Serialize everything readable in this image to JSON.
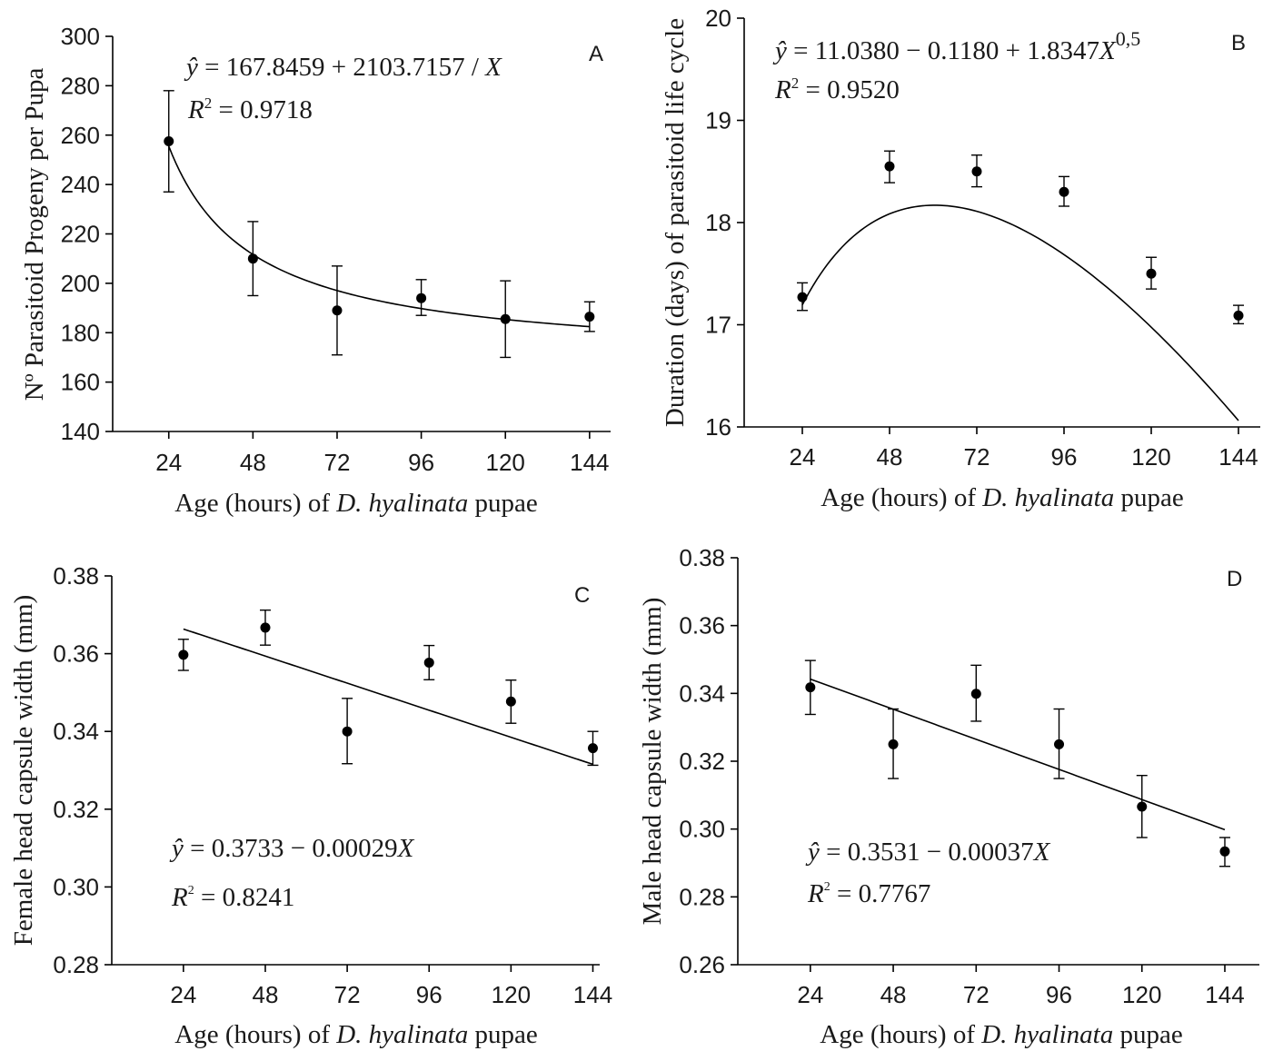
{
  "figure": {
    "xlabel_prefix": "Age (hours) of ",
    "xlabel_species": "D. hyalinata",
    "xlabel_suffix": " pupae"
  },
  "chart_data": [
    {
      "type": "scatter",
      "panel": "A",
      "ylabel": "Nº Parasitoid Progeny per Pupa",
      "x_ticks": [
        "24",
        "48",
        "72",
        "96",
        "120",
        "144"
      ],
      "y_ticks": [
        "140",
        "160",
        "180",
        "200",
        "220",
        "240",
        "260",
        "280",
        "300"
      ],
      "xlim": [
        8,
        150
      ],
      "ylim": [
        140,
        300
      ],
      "x": [
        24,
        48,
        72,
        96,
        120,
        144
      ],
      "y": [
        257.5,
        210,
        189,
        194,
        185.5,
        186.5
      ],
      "err_low": [
        237,
        195,
        171,
        187,
        170,
        180.5
      ],
      "err_high": [
        278,
        225,
        207,
        201.5,
        201,
        192.5
      ],
      "fit": {
        "model": "inverse",
        "a": 167.8459,
        "b": 2103.7157,
        "x_range": [
          24,
          144
        ]
      },
      "equation": {
        "prefix": "= 167.8459 + 2103.7157 / ",
        "var": "X",
        "r2": "= 0.9718"
      }
    },
    {
      "type": "scatter",
      "panel": "B",
      "ylabel": "Duration (days) of parasitoid life cycle",
      "x_ticks": [
        "24",
        "48",
        "72",
        "96",
        "120",
        "144"
      ],
      "y_ticks": [
        "16",
        "17",
        "18",
        "19",
        "20"
      ],
      "xlim": [
        8,
        150
      ],
      "ylim": [
        16,
        20
      ],
      "x": [
        24,
        48,
        72,
        96,
        120,
        144
      ],
      "y": [
        17.27,
        18.55,
        18.5,
        18.3,
        17.5,
        17.09
      ],
      "err_low": [
        17.14,
        18.39,
        18.35,
        18.16,
        17.35,
        17.01
      ],
      "err_high": [
        17.41,
        18.7,
        18.66,
        18.45,
        17.66,
        17.19
      ],
      "fit": {
        "model": "sqrt",
        "a": 11.038,
        "b": -0.118,
        "c": 1.8347,
        "x_range": [
          24,
          144
        ]
      },
      "equation": {
        "prefix": "= 11.0380 − 0.1180 + 1.8347",
        "var": "X",
        "exp": "0,5",
        "r2": "= 0.9520"
      }
    },
    {
      "type": "scatter",
      "panel": "C",
      "ylabel": "Female head capsule width (mm)",
      "x_ticks": [
        "24",
        "48",
        "72",
        "96",
        "120",
        "144"
      ],
      "y_ticks": [
        "0.28",
        "0.30",
        "0.32",
        "0.34",
        "0.36",
        "0.38"
      ],
      "xlim": [
        3,
        146
      ],
      "ylim": [
        0.28,
        0.38
      ],
      "x": [
        24,
        48,
        72,
        96,
        120,
        144
      ],
      "y": [
        0.3597,
        0.3667,
        0.34,
        0.3577,
        0.3477,
        0.3357
      ],
      "err_low": [
        0.3557,
        0.3622,
        0.3317,
        0.3533,
        0.3421,
        0.3313
      ],
      "err_high": [
        0.3637,
        0.3712,
        0.3485,
        0.3621,
        0.3532,
        0.34
      ],
      "fit": {
        "model": "linear",
        "a": 0.3733,
        "b": -0.00029,
        "x_range": [
          24,
          144
        ]
      },
      "equation": {
        "prefix": "= 0.3733 − 0.00029",
        "var": "X",
        "r2": "= 0.8241"
      }
    },
    {
      "type": "scatter",
      "panel": "D",
      "ylabel": "Male head capsule width (mm)",
      "x_ticks": [
        "24",
        "48",
        "72",
        "96",
        "120",
        "144"
      ],
      "y_ticks": [
        "0.26",
        "0.28",
        "0.30",
        "0.32",
        "0.34",
        "0.36",
        "0.38"
      ],
      "xlim": [
        3,
        154
      ],
      "ylim": [
        0.26,
        0.38
      ],
      "x": [
        24,
        48,
        72,
        96,
        120,
        144
      ],
      "y": [
        0.3418,
        0.325,
        0.3399,
        0.325,
        0.3066,
        0.2934
      ],
      "err_low": [
        0.3338,
        0.3149,
        0.3318,
        0.3149,
        0.2975,
        0.289
      ],
      "err_high": [
        0.3497,
        0.3354,
        0.3483,
        0.3354,
        0.3158,
        0.2975
      ],
      "fit": {
        "model": "linear",
        "a": 0.3531,
        "b": -0.00037,
        "x_range": [
          24,
          144
        ]
      },
      "equation": {
        "prefix": "= 0.3531 − 0.00037",
        "var": "X",
        "r2": "= 0.7767"
      }
    }
  ]
}
